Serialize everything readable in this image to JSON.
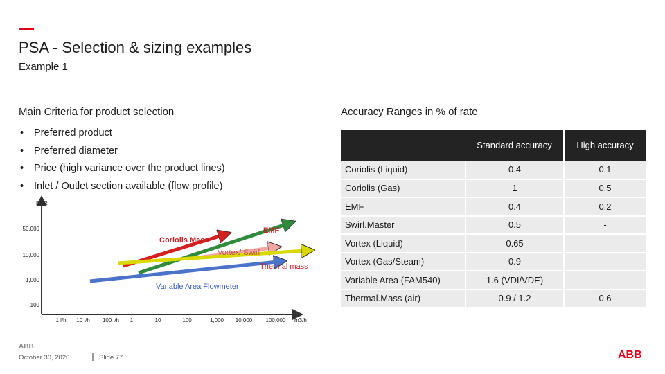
{
  "header": {
    "title": "PSA - Selection & sizing examples",
    "subtitle": "Example 1"
  },
  "left": {
    "heading": "Main Criteria for product selection",
    "bullet_char": "•",
    "criteria": [
      "Preferred product",
      "Preferred diameter",
      "Price (high variance over the product lines)",
      "Inlet / Outlet section available (flow profile)"
    ]
  },
  "right": {
    "heading": "Accuracy Ranges in % of rate",
    "columns": [
      "",
      "Standard accuracy",
      "High accuracy"
    ],
    "rows": [
      [
        "Coriolis (Liquid)",
        "0.4",
        "0.1"
      ],
      [
        "Coriolis (Gas)",
        "1",
        "0.5"
      ],
      [
        "EMF",
        "0.4",
        "0.2"
      ],
      [
        "Swirl.Master",
        "0.5",
        "-"
      ],
      [
        "Vortex (Liquid)",
        "0.65",
        "-"
      ],
      [
        "Vortex (Gas/Steam)",
        "0.9",
        "-"
      ],
      [
        "Variable Area (FAM540)",
        "1.6 (VDI/VDE)",
        "-"
      ],
      [
        "Thermal.Mass (air)",
        "0.9 / 1.2",
        "0.6"
      ]
    ]
  },
  "chart_data": {
    "type": "line",
    "ylabel": "EUR",
    "xlabel": "m3/h",
    "y_ticks": [
      "50,000",
      "10,000",
      "1,000",
      "100"
    ],
    "x_ticks": [
      "1 l/h",
      "10 l/h",
      "100 l/h",
      "1",
      "10",
      "100",
      "1,000",
      "10,000",
      "100,000"
    ],
    "series": [
      {
        "name": "Coriolis Mass",
        "color": "#d62020"
      },
      {
        "name": "EMF",
        "color": "#2e8b3c"
      },
      {
        "name": "Vortex/ Swirl",
        "color": "#f3a7a3"
      },
      {
        "name": "Thermal mass",
        "color": "#d9d900"
      },
      {
        "name": "Variable Area Flowmeter",
        "color": "#4a73c9"
      }
    ]
  },
  "footer": {
    "logo_text": "ABB",
    "date": "October 30, 2020",
    "slide": "Slide 77"
  },
  "colors": {
    "accent": "#e2001a",
    "table_header": "#232323",
    "table_cell": "#ebebeb"
  }
}
